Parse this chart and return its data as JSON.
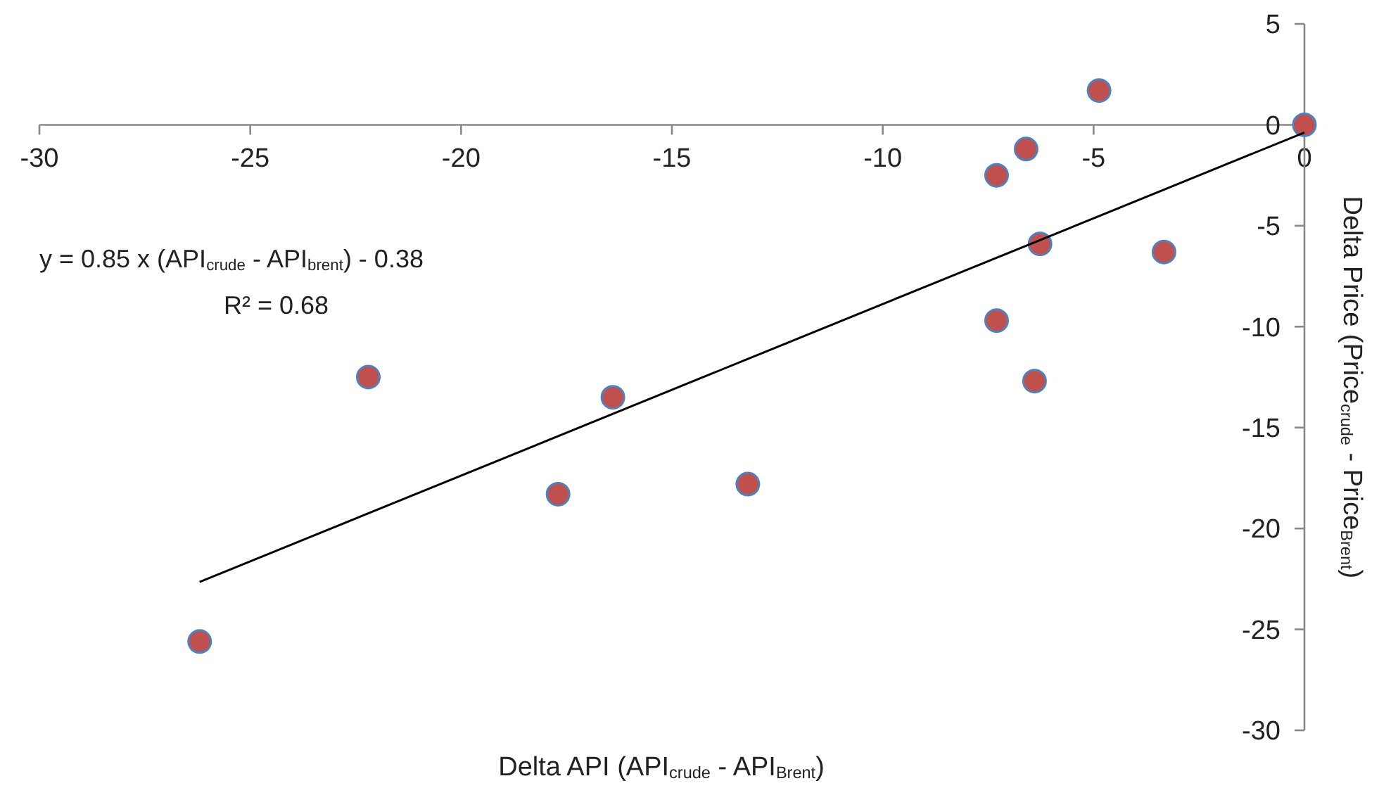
{
  "chart_data": {
    "type": "scatter",
    "xlabel": "Delta API (API$_{crude}$ - API$_{Brent}$)",
    "ylabel": "Delta Price (Price$_{crude}$ - Price$_{Brent}$)",
    "xlim": [
      -30,
      0
    ],
    "xticks": [
      -30,
      -25,
      -20,
      -15,
      -10,
      -5,
      0
    ],
    "ylim": [
      -30,
      5
    ],
    "yticks": [
      -30,
      -25,
      -20,
      -15,
      -10,
      -5,
      0,
      5
    ],
    "grid": false,
    "annotations": [
      "y = 0.85 x (API$_{crude}$ - API$_{brent}$) - 0.38",
      "R² = 0.68"
    ],
    "series": [
      {
        "color": "#c0504d",
        "marker": "circle",
        "x": [
          0,
          -4.87,
          -6.6,
          -7.3,
          -6.27,
          -3.33,
          -7.3,
          -6.4,
          -22.2,
          -16.4,
          -17.7,
          -13.2,
          -26.2
        ],
        "values": [
          0,
          1.7,
          -1.2,
          -2.5,
          -5.9,
          -6.3,
          -9.7,
          -12.7,
          -12.5,
          -13.5,
          -18.3,
          -17.8,
          -25.6
        ]
      },
      {
        "type": "line",
        "color": "#000000",
        "x": [
          -26.2,
          0
        ],
        "values": [
          -22.65,
          -0.38
        ],
        "marker": "none",
        "line_style": "solid"
      }
    ]
  }
}
